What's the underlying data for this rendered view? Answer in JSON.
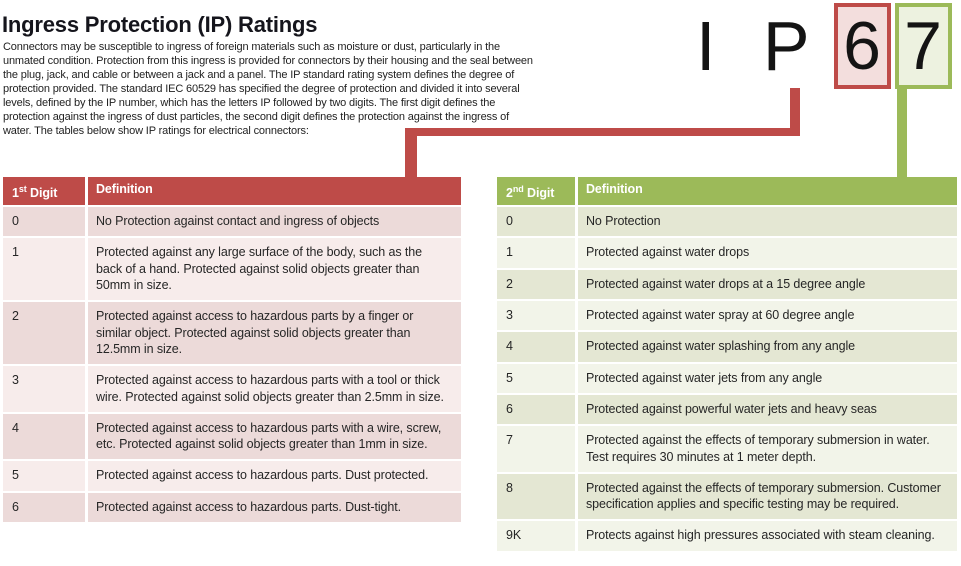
{
  "page": {
    "title": "Ingress Protection (IP) Ratings",
    "intro": "Connectors may be susceptible to ingress of foreign materials such as moisture or dust, particularly in the unmated condition. Protection from this ingress is provided for connectors by their housing and the seal between the plug, jack, and cable or between a jack and a panel. The IP standard rating system defines the degree of protection provided. The standard IEC 60529 has specified the degree of protection and divided it into several levels, defined by the IP number, which has the letters IP followed by two digits. The first digit defines the protection against the ingress of dust particles, the second digit defines the protection against the ingress of water. The tables below show IP ratings for electrical connectors:"
  },
  "ip_badge": {
    "prefix": "I P",
    "first_digit": "6",
    "second_digit": "7"
  },
  "colors": {
    "red_accent": "#be4b48",
    "red_box_fill": "#f3dedd",
    "red_row_dark": "#ecdad9",
    "red_row_light": "#f7eceb",
    "green_accent": "#9cba59",
    "green_box_fill": "#edf2e0",
    "green_row_dark": "#e4e7d3",
    "green_row_light": "#f2f4e9"
  },
  "first_digit_table": {
    "header": {
      "digit_num": "1",
      "digit_sup": "st",
      "digit_rest": " Digit",
      "definition": "Definition"
    },
    "rows": [
      {
        "digit": "0",
        "definition": "No Protection against contact and ingress of objects"
      },
      {
        "digit": "1",
        "definition": "Protected against any large surface of the body, such as the back of a hand. Protected against solid objects greater than 50mm in size."
      },
      {
        "digit": "2",
        "definition": "Protected against access to hazardous parts by a finger or similar object. Protected against solid objects greater than 12.5mm in size."
      },
      {
        "digit": "3",
        "definition": "Protected against access to hazardous parts with a tool or thick wire. Protected against solid objects greater than 2.5mm in size."
      },
      {
        "digit": "4",
        "definition": "Protected against access to hazardous parts with a wire, screw, etc. Protected against solid objects greater than 1mm in size."
      },
      {
        "digit": "5",
        "definition": "Protected against access to hazardous parts. Dust protected."
      },
      {
        "digit": "6",
        "definition": "Protected against access to hazardous parts. Dust-tight."
      }
    ]
  },
  "second_digit_table": {
    "header": {
      "digit_num": "2",
      "digit_sup": "nd",
      "digit_rest": " Digit",
      "definition": "Definition"
    },
    "rows": [
      {
        "digit": "0",
        "definition": "No Protection"
      },
      {
        "digit": "1",
        "definition": "Protected against water drops"
      },
      {
        "digit": "2",
        "definition": "Protected against water drops at a 15 degree angle"
      },
      {
        "digit": "3",
        "definition": "Protected against water spray at 60 degree angle"
      },
      {
        "digit": "4",
        "definition": "Protected against water splashing from any angle"
      },
      {
        "digit": "5",
        "definition": "Protected against water jets from any angle"
      },
      {
        "digit": "6",
        "definition": "Protected against powerful water jets and heavy seas"
      },
      {
        "digit": "7",
        "definition": "Protected against the effects of temporary submersion in water. Test requires 30 minutes at 1 meter depth."
      },
      {
        "digit": "8",
        "definition": "Protected against the effects of temporary submersion. Customer specification applies and specific testing may be required."
      },
      {
        "digit": "9K",
        "definition": "Protects against high pressures associated with steam cleaning."
      }
    ]
  }
}
